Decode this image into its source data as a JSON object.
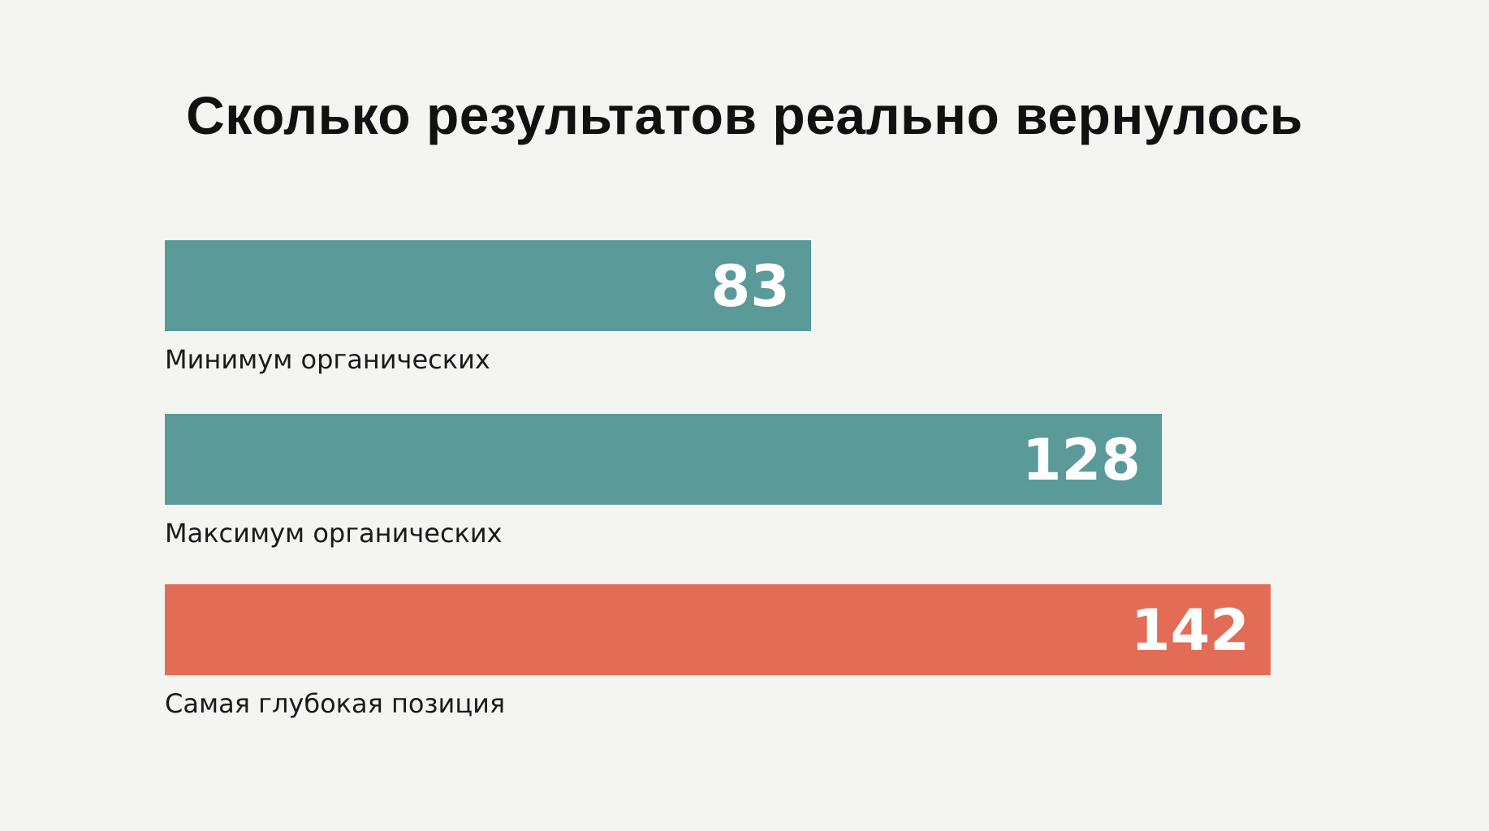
{
  "title": "Сколько результатов реально вернулось",
  "colors": {
    "background": "#f4f4f0",
    "teal": "#5a9a99",
    "coral": "#e26c55",
    "value_text": "#ffffff",
    "label_text": "#1a1a1a"
  },
  "chart_data": {
    "type": "bar",
    "orientation": "horizontal",
    "title": "Сколько результатов реально вернулось",
    "categories": [
      "Минимум органических",
      "Максимум органических",
      "Самая глубокая позиция"
    ],
    "values": [
      83,
      128,
      142
    ],
    "bar_colors": [
      "#5a9a99",
      "#5a9a99",
      "#e26c55"
    ],
    "xlim": [
      0,
      142
    ],
    "grid": false,
    "legend": "none"
  }
}
